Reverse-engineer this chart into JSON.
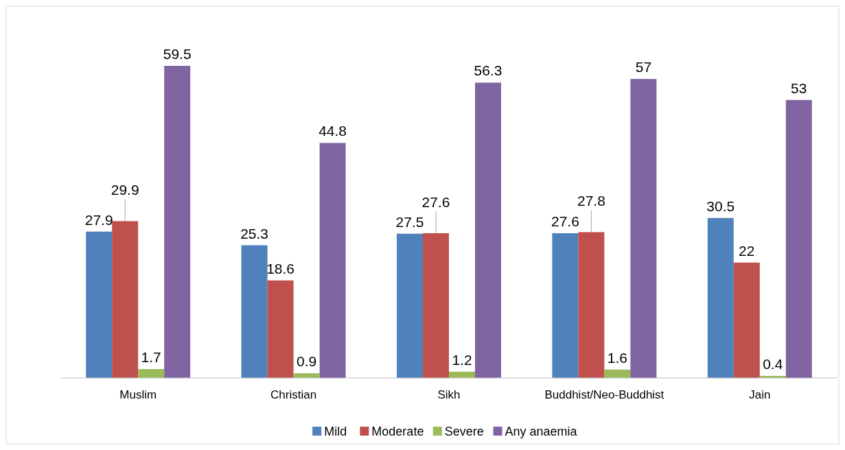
{
  "chart_data": {
    "type": "bar",
    "categories": [
      "Muslim",
      "Christian",
      "Sikh",
      "Buddhist/Neo-Buddhist",
      "Jain"
    ],
    "series": [
      {
        "name": "Mild",
        "color": "#4f81bd",
        "values": [
          27.9,
          25.3,
          27.5,
          27.6,
          30.5
        ]
      },
      {
        "name": "Moderate",
        "color": "#c0504d",
        "values": [
          29.9,
          18.6,
          27.6,
          27.8,
          22
        ]
      },
      {
        "name": "Severe",
        "color": "#9bbb59",
        "values": [
          1.7,
          0.9,
          1.2,
          1.6,
          0.4
        ]
      },
      {
        "name": "Any anaemia",
        "color": "#8064a2",
        "values": [
          59.5,
          44.8,
          56.3,
          57,
          53
        ]
      }
    ],
    "data_labels": true,
    "legend": "bottom"
  }
}
